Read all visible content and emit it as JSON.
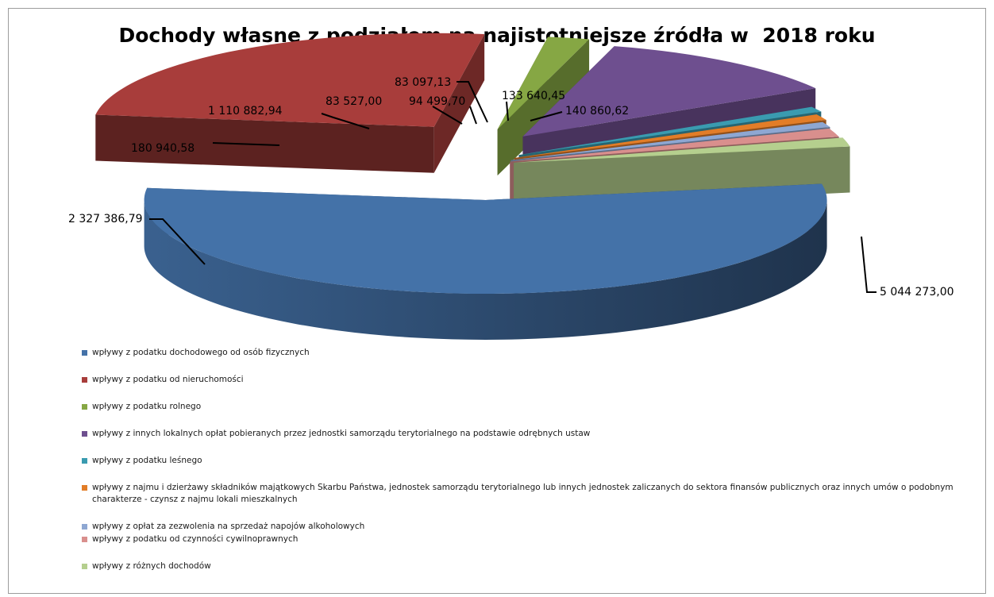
{
  "chart_data": {
    "type": "pie",
    "title": "Dochody własne z podziałem na najistotniejsze źródła w  2018 roku",
    "legend_position": "bottom",
    "categories": [
      "wpływy z podatku dochodowego od osób fizycznych",
      "wpływy z podatku od nieruchomości",
      "wpływy z podatku rolnego",
      "wpływy z innych lokalnych opłat pobieranych przez jednostki samorządu terytorialnego na podstawie odrębnych ustaw",
      "wpływy z podatku leśnego",
      "wpływy z najmu i dzierżawy składników majątkowych Skarbu Państwa, jednostek samorządu terytorialnego lub innych jednostek zaliczanych do sektora finansów publicznych oraz innych umów o podobnym charakterze  - czynsz z najmu lokali mieszkalnych",
      "wpływy z opłat za zezwolenia na sprzedaż napojów alkoholowych",
      "wpływy z podatku od czynności cywilnoprawnych",
      "wpływy z różnych dochodów"
    ],
    "values": [
      5044273.0,
      2327386.79,
      180940.58,
      1110882.94,
      83527.0,
      94499.7,
      83097.13,
      133640.45,
      140860.62
    ],
    "data_labels": [
      "5 044 273,00",
      "2 327 386,79",
      "180 940,58",
      "1 110 882,94",
      "83 527,00",
      "94 499,70",
      "83 097,13",
      "133 640,45",
      "140 860,62"
    ],
    "colors": [
      "#4472a8",
      "#a83d3b",
      "#86a744",
      "#6e4f8f",
      "#3a9bb0",
      "#e27d28",
      "#8ea7d2",
      "#d98f8d",
      "#b5cf8e"
    ]
  }
}
